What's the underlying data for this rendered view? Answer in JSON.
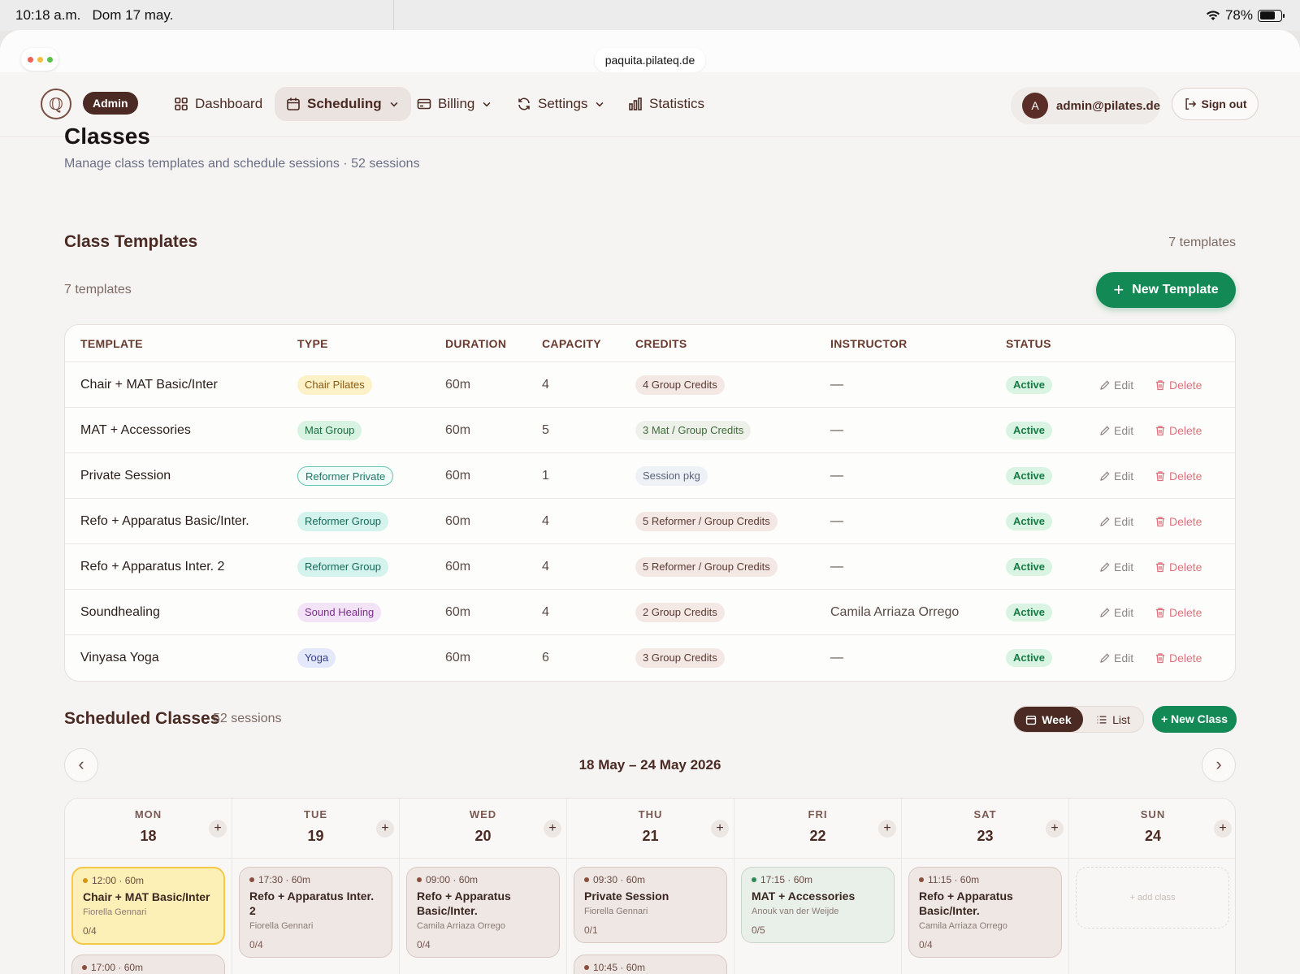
{
  "status_bar": {
    "time": "10:18 a.m.",
    "date": "Dom 17 may.",
    "battery": "78%"
  },
  "browser": {
    "url": "paquita.pilateq.de"
  },
  "nav": {
    "badge": "Admin",
    "items": [
      {
        "label": "Dashboard",
        "icon": "grid-icon"
      },
      {
        "label": "Scheduling",
        "icon": "calendar-icon",
        "active": true
      },
      {
        "label": "Billing",
        "icon": "card-icon"
      },
      {
        "label": "Settings",
        "icon": "refresh-icon"
      },
      {
        "label": "Statistics",
        "icon": "bar-chart-icon"
      }
    ],
    "user_initial": "A",
    "user_email": "admin@pilates.de",
    "signout": "Sign out"
  },
  "page": {
    "title": "Classes",
    "subtitle": "Manage class templates and schedule sessions · 52 sessions"
  },
  "templates": {
    "title": "Class Templates",
    "count_right": "7 templates",
    "count_left": "7 templates",
    "new_button": "New Template",
    "columns": [
      "TEMPLATE",
      "TYPE",
      "DURATION",
      "CAPACITY",
      "CREDITS",
      "INSTRUCTOR",
      "STATUS"
    ],
    "edit_label": "Edit",
    "delete_label": "Delete",
    "rows": [
      {
        "name": "Chair + MAT Basic/Inter",
        "type": "Chair Pilates",
        "type_bg": "#fdf1c8",
        "type_fg": "#8a5a10",
        "type_border": "",
        "duration": "60m",
        "capacity": "4",
        "credits": "4 Group Credits",
        "credits_bg": "#f3e8e4",
        "credits_fg": "#5a3a32",
        "instructor": "—",
        "status": "Active"
      },
      {
        "name": "MAT + Accessories",
        "type": "Mat Group",
        "type_bg": "#d8f3e2",
        "type_fg": "#1c6e3f",
        "type_border": "",
        "duration": "60m",
        "capacity": "5",
        "credits": "3 Mat / Group Credits",
        "credits_bg": "#eef1ea",
        "credits_fg": "#3f6a3a",
        "instructor": "—",
        "status": "Active"
      },
      {
        "name": "Private Session",
        "type": "Reformer Private",
        "type_bg": "#f1fbf8",
        "type_fg": "#1a7a66",
        "type_border": "#66c4b0",
        "duration": "60m",
        "capacity": "1",
        "credits": "Session pkg",
        "credits_bg": "#eef1f6",
        "credits_fg": "#5a6478",
        "instructor": "—",
        "status": "Active"
      },
      {
        "name": "Refo + Apparatus Basic/Inter.",
        "type": "Reformer Group",
        "type_bg": "#d4f3ec",
        "type_fg": "#156a5a",
        "type_border": "",
        "duration": "60m",
        "capacity": "4",
        "credits": "5 Reformer / Group Credits",
        "credits_bg": "#f3e8e4",
        "credits_fg": "#5a3a32",
        "instructor": "—",
        "status": "Active"
      },
      {
        "name": "Refo + Apparatus Inter. 2",
        "type": "Reformer Group",
        "type_bg": "#d4f3ec",
        "type_fg": "#156a5a",
        "type_border": "",
        "duration": "60m",
        "capacity": "4",
        "credits": "5 Reformer / Group Credits",
        "credits_bg": "#f3e8e4",
        "credits_fg": "#5a3a32",
        "instructor": "—",
        "status": "Active"
      },
      {
        "name": "Soundhealing",
        "type": "Sound Healing",
        "type_bg": "#f3e3f7",
        "type_fg": "#7a2e8a",
        "type_border": "",
        "duration": "60m",
        "capacity": "4",
        "credits": "2 Group Credits",
        "credits_bg": "#f3e8e4",
        "credits_fg": "#5a3a32",
        "instructor": "Camila Arriaza Orrego",
        "status": "Active"
      },
      {
        "name": "Vinyasa Yoga",
        "type": "Yoga",
        "type_bg": "#e3e8fa",
        "type_fg": "#34418a",
        "type_border": "",
        "duration": "60m",
        "capacity": "6",
        "credits": "3 Group Credits",
        "credits_bg": "#f3e8e4",
        "credits_fg": "#5a3a32",
        "instructor": "—",
        "status": "Active"
      }
    ]
  },
  "scheduled": {
    "title": "Scheduled Classes",
    "count": "52 sessions",
    "view_week": "Week",
    "view_list": "List",
    "new_class": "+ New Class",
    "prev": "‹",
    "next": "›",
    "range": "18 May – 24 May 2026",
    "add_class": "+ add class",
    "days": [
      {
        "dow": "MON",
        "num": "18",
        "cards": [
          {
            "time": "12:00 · 60m",
            "title": "Chair + MAT Basic/Inter",
            "instructor": "Fiorella Gennari",
            "count": "0/4",
            "style": "yellow",
            "dot": "#d8930f"
          }
        ],
        "more_time": "17:00 · 60m"
      },
      {
        "dow": "TUE",
        "num": "19",
        "cards": [
          {
            "time": "17:30 · 60m",
            "title": "Refo + Apparatus Inter. 2",
            "instructor": "Fiorella Gennari",
            "count": "0/4",
            "style": "brown",
            "dot": "#8a4e3d"
          }
        ],
        "more_time": ""
      },
      {
        "dow": "WED",
        "num": "20",
        "cards": [
          {
            "time": "09:00 · 60m",
            "title": "Refo + Apparatus Basic/Inter.",
            "instructor": "Camila Arriaza Orrego",
            "count": "0/4",
            "style": "brown",
            "dot": "#8a4e3d"
          }
        ],
        "more_time": ""
      },
      {
        "dow": "THU",
        "num": "21",
        "cards": [
          {
            "time": "09:30 · 60m",
            "title": "Private Session",
            "instructor": "Fiorella Gennari",
            "count": "0/1",
            "style": "brown",
            "dot": "#8a4e3d"
          }
        ],
        "more_time": "10:45 · 60m"
      },
      {
        "dow": "FRI",
        "num": "22",
        "cards": [
          {
            "time": "17:15 · 60m",
            "title": "MAT + Accessories",
            "instructor": "Anouk van der Weijde",
            "count": "0/5",
            "style": "green",
            "dot": "#2e8a55"
          }
        ],
        "more_time": ""
      },
      {
        "dow": "SAT",
        "num": "23",
        "cards": [
          {
            "time": "11:15 · 60m",
            "title": "Refo + Apparatus Basic/Inter.",
            "instructor": "Camila Arriaza Orrego",
            "count": "0/4",
            "style": "brown",
            "dot": "#8a4e3d"
          }
        ],
        "more_time": ""
      },
      {
        "dow": "SUN",
        "num": "24",
        "cards": [],
        "more_time": ""
      }
    ]
  },
  "colors": {
    "accent_green": "#138a55",
    "brand_brown": "#4a2a22",
    "status_green": "#167a45"
  }
}
